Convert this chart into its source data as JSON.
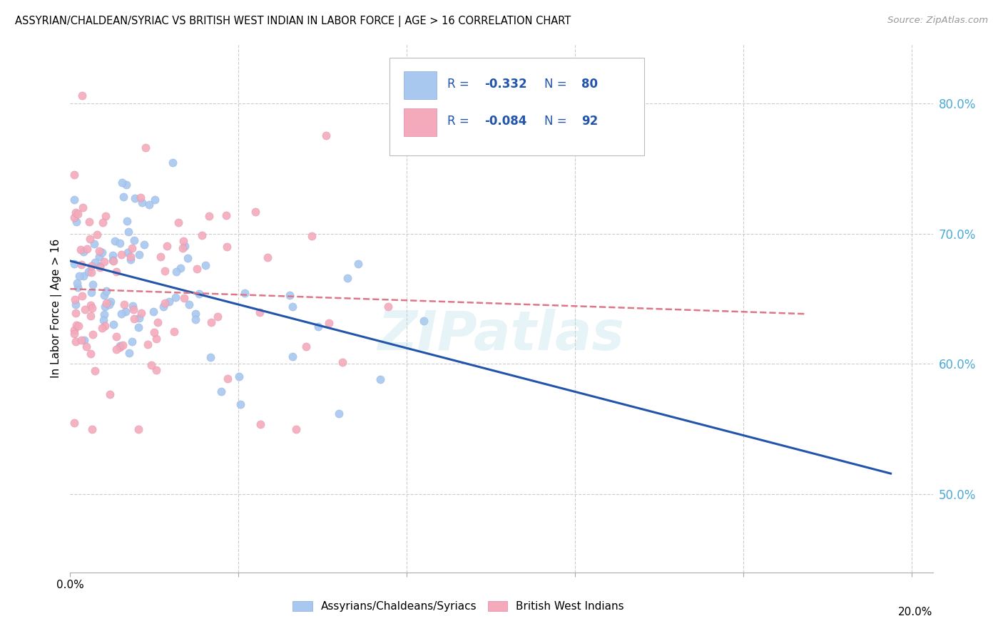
{
  "title": "ASSYRIAN/CHALDEAN/SYRIAC VS BRITISH WEST INDIAN IN LABOR FORCE | AGE > 16 CORRELATION CHART",
  "source": "Source: ZipAtlas.com",
  "ylabel": "In Labor Force | Age > 16",
  "ylabel_right_ticks": [
    "80.0%",
    "70.0%",
    "60.0%",
    "50.0%"
  ],
  "ylabel_right_vals": [
    0.8,
    0.7,
    0.6,
    0.5
  ],
  "legend_label_blue": "Assyrians/Chaldeans/Syriacs",
  "legend_label_pink": "British West Indians",
  "blue_color": "#A8C8F0",
  "pink_color": "#F4AABB",
  "trend_blue_color": "#2255AA",
  "trend_pink_color": "#DD7788",
  "r_value_color": "#2255AA",
  "watermark": "ZIPatlas",
  "xmin": 0.0,
  "xmax": 0.205,
  "ymin": 0.44,
  "ymax": 0.845,
  "blue_intercept": 0.672,
  "blue_slope": -0.52,
  "pink_intercept": 0.668,
  "pink_slope": -0.2
}
